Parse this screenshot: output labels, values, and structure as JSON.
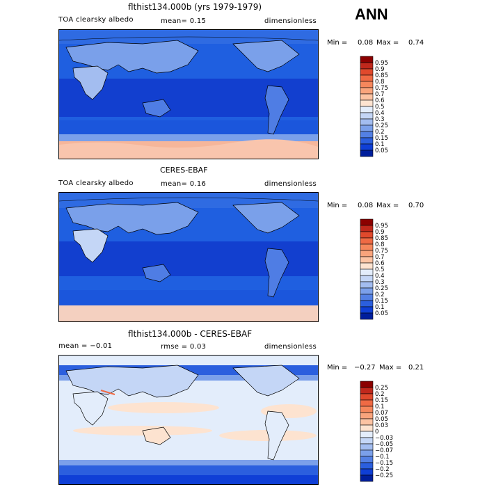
{
  "season": "ANN",
  "panels": [
    {
      "title": "flthist134.000b (yrs 1979-1979)",
      "left_label": "TOA clearsky albedo",
      "center_label": "mean=   0.15",
      "right_label": "dimensionless",
      "min_label": "Min =",
      "min_value": "0.08",
      "max_label": "Max =",
      "max_value": "0.74"
    },
    {
      "title": "CERES-EBAF",
      "left_label": "TOA clearsky albedo",
      "center_label": "mean=   0.16",
      "right_label": "dimensionless",
      "min_label": "Min =",
      "min_value": "0.08",
      "max_label": "Max =",
      "max_value": "0.70"
    },
    {
      "title": "flthist134.000b - CERES-EBAF",
      "left_label": "mean =   −0.01",
      "center_label": "rmse =    0.03",
      "right_label": "dimensionless",
      "min_label": "Min =",
      "min_value": "−0.27",
      "max_label": "Max =",
      "max_value": "0.21"
    }
  ],
  "colorbar_abs": {
    "labels": [
      "0.95",
      "0.9",
      "0.85",
      "0.8",
      "0.75",
      "0.7",
      "0.6",
      "0.5",
      "0.4",
      "0.3",
      "0.25",
      "0.2",
      "0.15",
      "0.1",
      "0.05"
    ],
    "colors": [
      "#8b0000",
      "#c0281c",
      "#e0492c",
      "#ef6a44",
      "#f5875c",
      "#f9a47c",
      "#fcc3a3",
      "#fde3d0",
      "#e3edfb",
      "#c4d6f6",
      "#a3bdf0",
      "#7ba0ea",
      "#5380e4",
      "#2b5fde",
      "#0f3fd6",
      "#001e9c"
    ]
  },
  "colorbar_diff": {
    "labels": [
      "0.25",
      "0.2",
      "0.15",
      "0.1",
      "0.07",
      "0.05",
      "0.03",
      "0",
      "−0.03",
      "−0.05",
      "−0.07",
      "−0.1",
      "−0.15",
      "−0.2",
      "−0.25"
    ],
    "colors": [
      "#8b0000",
      "#c0281c",
      "#e0492c",
      "#ef6a44",
      "#f5875c",
      "#f9a47c",
      "#fcc3a3",
      "#fde3d0",
      "#e3edfb",
      "#c4d6f6",
      "#a3bdf0",
      "#7ba0ea",
      "#5380e4",
      "#2b5fde",
      "#0f3fd6",
      "#001e9c"
    ]
  }
}
